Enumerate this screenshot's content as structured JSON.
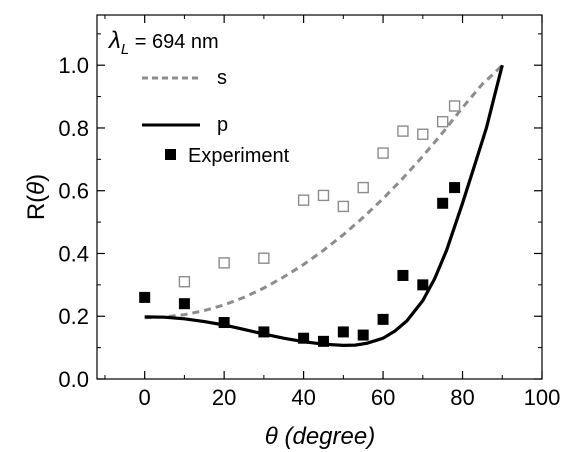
{
  "chart_data": {
    "type": "scatter",
    "annotation": {
      "symbol": "λ",
      "subscript": "L",
      "text": " = 694 nm"
    },
    "xlabel": {
      "symbol": "θ",
      "text": " (degree)"
    },
    "ylabel": {
      "text": "R(",
      "symbol": "θ",
      "close": ")"
    },
    "xlim": [
      -12,
      100
    ],
    "ylim": [
      0.0,
      1.16
    ],
    "x_ticks": [
      "0",
      "20",
      "40",
      "60",
      "80",
      "100"
    ],
    "x_tick_values": [
      0,
      20,
      40,
      60,
      80,
      100
    ],
    "y_ticks": [
      "0.0",
      "0.2",
      "0.4",
      "0.6",
      "0.8",
      "1.0"
    ],
    "y_tick_values": [
      0.0,
      0.2,
      0.4,
      0.6,
      0.8,
      1.0
    ],
    "legend_placement": "top-left",
    "series": [
      {
        "name": "s",
        "kind": "line",
        "style": "dashed",
        "color": "#8c8c8c",
        "x": [
          0,
          5,
          10,
          15,
          20,
          25,
          30,
          35,
          40,
          45,
          50,
          55,
          60,
          65,
          70,
          75,
          80,
          85,
          88,
          90
        ],
        "y": [
          0.195,
          0.198,
          0.205,
          0.218,
          0.236,
          0.26,
          0.29,
          0.325,
          0.365,
          0.41,
          0.46,
          0.515,
          0.575,
          0.64,
          0.71,
          0.785,
          0.865,
          0.94,
          0.975,
          1.0
        ]
      },
      {
        "name": "p",
        "kind": "line",
        "style": "solid",
        "color": "#000000",
        "x": [
          0,
          5,
          10,
          15,
          20,
          25,
          30,
          35,
          40,
          45,
          50,
          53,
          56,
          60,
          63,
          66,
          70,
          73,
          76,
          80,
          83,
          86,
          88,
          90
        ],
        "y": [
          0.198,
          0.197,
          0.192,
          0.183,
          0.172,
          0.158,
          0.143,
          0.13,
          0.119,
          0.111,
          0.107,
          0.108,
          0.114,
          0.13,
          0.153,
          0.185,
          0.25,
          0.32,
          0.41,
          0.56,
          0.68,
          0.8,
          0.9,
          1.0
        ]
      },
      {
        "name": "Experiment",
        "kind": "scatter",
        "marker": "filled-square",
        "color": "#000000",
        "x": [
          0,
          10,
          20,
          30,
          40,
          45,
          50,
          55,
          60,
          65,
          70,
          75,
          78
        ],
        "y": [
          0.26,
          0.24,
          0.18,
          0.15,
          0.13,
          0.12,
          0.15,
          0.14,
          0.19,
          0.33,
          0.3,
          0.56,
          0.61
        ]
      },
      {
        "kind": "scatter",
        "marker": "open-square",
        "color": "#8c8c8c",
        "x": [
          10,
          20,
          30,
          40,
          45,
          50,
          55,
          60,
          65,
          70,
          75,
          78
        ],
        "y": [
          0.31,
          0.37,
          0.385,
          0.57,
          0.585,
          0.55,
          0.61,
          0.72,
          0.79,
          0.78,
          0.82,
          0.87
        ]
      }
    ]
  }
}
